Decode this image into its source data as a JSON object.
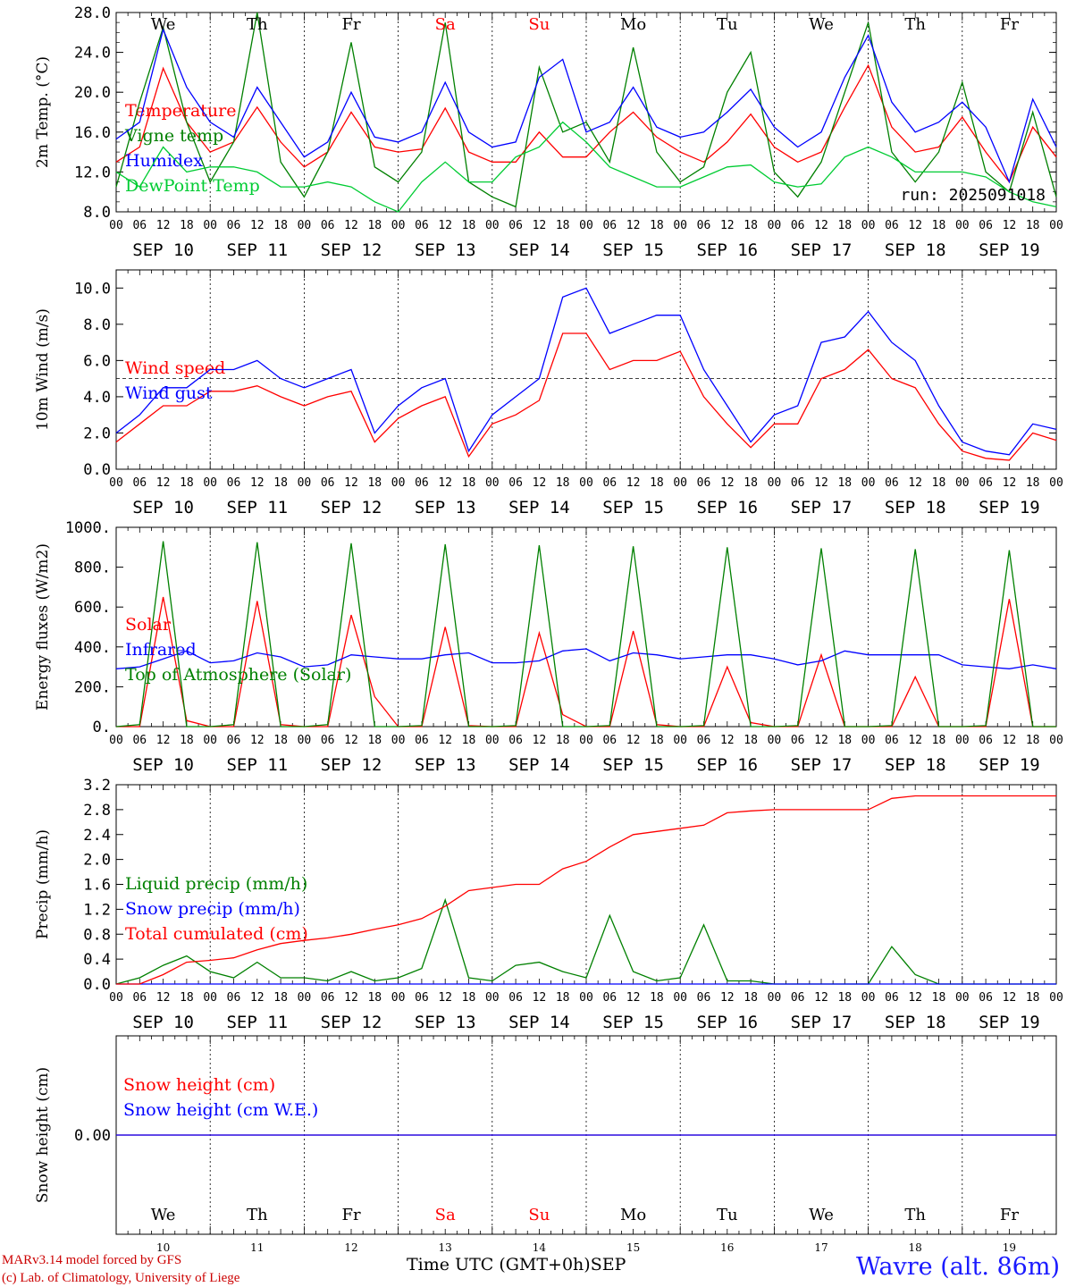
{
  "chart_data": [
    {
      "type": "line",
      "ylabel": "2m Temp. (°C)",
      "ylim": [
        8.0,
        28.0
      ],
      "yticks": [
        "8.0",
        "12.0",
        "16.0",
        "20.0",
        "24.0",
        "28.0"
      ],
      "weekdays": [
        "We",
        "Th",
        "Fr",
        "Sa",
        "Su",
        "Mo",
        "Tu",
        "We",
        "Th",
        "Fr"
      ],
      "weekday_colors": [
        "#000000",
        "#000000",
        "#000000",
        "#ff0000",
        "#ff0000",
        "#000000",
        "#000000",
        "#000000",
        "#000000",
        "#000000"
      ],
      "annotation": "run: 2025091018",
      "x_hours": [
        0,
        6,
        12,
        18,
        24,
        30,
        36,
        42,
        48,
        54,
        60,
        66,
        72,
        78,
        84,
        90,
        96,
        102,
        108,
        114,
        120,
        126,
        132,
        138,
        144,
        150,
        156,
        162,
        168,
        174,
        180,
        186,
        192,
        198,
        204,
        210,
        216,
        222,
        228,
        234,
        240
      ],
      "series": [
        {
          "name": "Temperature",
          "color": "#ff0000",
          "values": [
            13,
            14.5,
            22.4,
            17,
            14,
            15,
            18.5,
            15,
            12.5,
            14,
            18,
            14.5,
            14,
            14.3,
            18.4,
            14,
            13,
            13,
            16,
            13.5,
            13.5,
            16,
            18,
            15.5,
            14,
            13,
            15,
            17.8,
            14.5,
            13,
            14,
            18.5,
            22.7,
            16.5,
            14,
            14.5,
            17.5,
            14,
            11,
            16.5,
            13.5
          ]
        },
        {
          "name": "Vigne temp",
          "color": "#008000",
          "values": [
            10.5,
            19,
            26.5,
            17,
            11,
            15,
            28,
            13,
            9.5,
            14,
            25,
            12.5,
            11,
            14,
            27,
            11,
            9.5,
            8.5,
            22.5,
            16,
            17,
            13,
            24.5,
            14,
            11,
            12.5,
            20,
            24,
            12,
            9.5,
            13,
            20,
            27,
            14,
            11,
            14,
            21,
            12,
            10,
            18,
            9.5
          ]
        },
        {
          "name": "Humidex",
          "color": "#0000ff",
          "values": [
            15.3,
            17,
            26.3,
            20.5,
            17,
            15.5,
            20.5,
            17,
            13.5,
            15,
            20,
            15.5,
            15,
            16,
            21,
            16,
            14.5,
            15,
            21.5,
            23.3,
            16,
            17,
            20.5,
            16.5,
            15.5,
            16,
            18,
            20.3,
            16.5,
            14.5,
            16,
            21.5,
            25.7,
            19,
            16,
            17,
            19,
            16.5,
            11,
            19.3,
            14.5
          ]
        },
        {
          "name": "DewPoint Temp",
          "color": "#00cc33",
          "values": [
            12,
            10.5,
            14.5,
            12,
            12.5,
            12.5,
            12,
            10.5,
            10.5,
            11,
            10.5,
            9,
            8,
            11,
            13,
            11,
            11,
            13.5,
            14.5,
            17,
            15,
            12.5,
            11.5,
            10.5,
            10.5,
            11.5,
            12.5,
            12.7,
            11,
            10.5,
            10.8,
            13.5,
            14.5,
            13.5,
            12,
            12,
            12,
            11.5,
            10,
            9,
            8.5
          ]
        }
      ]
    },
    {
      "type": "line",
      "ylabel": "10m Wind (m/s)",
      "ylim": [
        0.0,
        11.0
      ],
      "yticks": [
        "0.0",
        "2.0",
        "4.0",
        "6.0",
        "8.0",
        "10.0"
      ],
      "reference_line": 5.0,
      "x_hours": [
        0,
        6,
        12,
        18,
        24,
        30,
        36,
        42,
        48,
        54,
        60,
        66,
        72,
        78,
        84,
        90,
        96,
        102,
        108,
        114,
        120,
        126,
        132,
        138,
        144,
        150,
        156,
        162,
        168,
        174,
        180,
        186,
        192,
        198,
        204,
        210,
        216,
        222,
        228,
        234,
        240
      ],
      "series": [
        {
          "name": "Wind speed",
          "color": "#ff0000",
          "values": [
            1.5,
            2.5,
            3.5,
            3.5,
            4.3,
            4.3,
            4.6,
            4,
            3.5,
            4,
            4.3,
            1.5,
            2.8,
            3.5,
            4,
            0.7,
            2.5,
            3,
            3.8,
            7.5,
            7.5,
            5.5,
            6,
            6,
            6.5,
            4,
            2.5,
            1.2,
            2.5,
            2.5,
            5,
            5.5,
            6.6,
            5,
            4.5,
            2.5,
            1,
            0.6,
            0.5,
            2,
            1.6
          ]
        },
        {
          "name": "Wind gust",
          "color": "#0000ff",
          "values": [
            2,
            3,
            4.5,
            4.5,
            5.5,
            5.5,
            6,
            5,
            4.5,
            5,
            5.5,
            2,
            3.5,
            4.5,
            5,
            1,
            3,
            4,
            5,
            9.5,
            10,
            7.5,
            8,
            8.5,
            8.5,
            5.5,
            3.5,
            1.5,
            3,
            3.5,
            7,
            7.3,
            8.7,
            7,
            6,
            3.5,
            1.5,
            1,
            0.8,
            2.5,
            2.2
          ]
        }
      ]
    },
    {
      "type": "line",
      "ylabel": "Energy fluxes (W/m2)",
      "ylim": [
        0,
        1000
      ],
      "yticks": [
        "0.",
        "200.",
        "400.",
        "600.",
        "800.",
        "1000."
      ],
      "x_hours": [
        0,
        6,
        12,
        18,
        24,
        30,
        36,
        42,
        48,
        54,
        60,
        66,
        72,
        78,
        84,
        90,
        96,
        102,
        108,
        114,
        120,
        126,
        132,
        138,
        144,
        150,
        156,
        162,
        168,
        174,
        180,
        186,
        192,
        198,
        204,
        210,
        216,
        222,
        228,
        234,
        240
      ],
      "series": [
        {
          "name": "Solar",
          "color": "#ff0000",
          "values": [
            0,
            0,
            650,
            30,
            0,
            0,
            630,
            10,
            0,
            0,
            560,
            150,
            0,
            0,
            500,
            5,
            0,
            0,
            470,
            60,
            0,
            0,
            480,
            10,
            0,
            0,
            300,
            20,
            0,
            0,
            360,
            0,
            0,
            0,
            250,
            0,
            0,
            0,
            640,
            0,
            0
          ]
        },
        {
          "name": "Infrared",
          "color": "#0000ff",
          "values": [
            290,
            300,
            340,
            380,
            320,
            330,
            370,
            350,
            300,
            310,
            360,
            350,
            340,
            340,
            360,
            370,
            320,
            320,
            330,
            380,
            390,
            330,
            370,
            360,
            340,
            350,
            360,
            360,
            340,
            310,
            330,
            380,
            360,
            360,
            360,
            360,
            310,
            300,
            290,
            310,
            290
          ]
        },
        {
          "name": "Top of Atmosphere (Solar)",
          "color": "#008000",
          "values": [
            0,
            10,
            930,
            0,
            0,
            10,
            925,
            0,
            0,
            10,
            920,
            0,
            0,
            5,
            915,
            0,
            0,
            5,
            910,
            0,
            0,
            5,
            905,
            0,
            0,
            5,
            900,
            0,
            0,
            5,
            895,
            0,
            0,
            5,
            890,
            0,
            0,
            5,
            885,
            0,
            0
          ]
        }
      ]
    },
    {
      "type": "line",
      "ylabel": "Precip (mm/h)",
      "ylim": [
        0.0,
        3.2
      ],
      "yticks": [
        "0.0",
        "0.4",
        "0.8",
        "1.2",
        "1.6",
        "2.0",
        "2.4",
        "2.8",
        "3.2"
      ],
      "x_hours": [
        0,
        6,
        12,
        18,
        24,
        30,
        36,
        42,
        48,
        54,
        60,
        66,
        72,
        78,
        84,
        90,
        96,
        102,
        108,
        114,
        120,
        126,
        132,
        138,
        144,
        150,
        156,
        162,
        168,
        174,
        180,
        186,
        192,
        198,
        204,
        210,
        216,
        222,
        228,
        234,
        240
      ],
      "series": [
        {
          "name": "Liquid precip (mm/h)",
          "color": "#008000",
          "values": [
            0,
            0.1,
            0.3,
            0.45,
            0.2,
            0.1,
            0.35,
            0.1,
            0.1,
            0.05,
            0.2,
            0.05,
            0.1,
            0.25,
            1.35,
            0.1,
            0.05,
            0.3,
            0.35,
            0.2,
            0.1,
            1.1,
            0.2,
            0.05,
            0.1,
            0.95,
            0.05,
            0.05,
            0,
            0,
            0,
            0,
            0,
            0.6,
            0.15,
            0,
            0,
            0,
            0,
            0,
            0
          ]
        },
        {
          "name": "Snow precip (mm/h)",
          "color": "#0000ff",
          "values": [
            0,
            0,
            0,
            0,
            0,
            0,
            0,
            0,
            0,
            0,
            0,
            0,
            0,
            0,
            0,
            0,
            0,
            0,
            0,
            0,
            0,
            0,
            0,
            0,
            0,
            0,
            0,
            0,
            0,
            0,
            0,
            0,
            0,
            0,
            0,
            0,
            0,
            0,
            0,
            0,
            0
          ]
        },
        {
          "name": "Total cumulated (cm)",
          "color": "#ff0000",
          "values": [
            0,
            0,
            0.15,
            0.35,
            0.38,
            0.42,
            0.55,
            0.65,
            0.7,
            0.74,
            0.8,
            0.88,
            0.95,
            1.05,
            1.25,
            1.5,
            1.55,
            1.6,
            1.6,
            1.85,
            1.97,
            2.2,
            2.4,
            2.45,
            2.5,
            2.55,
            2.75,
            2.78,
            2.8,
            2.8,
            2.8,
            2.8,
            2.8,
            2.98,
            3.02,
            3.02,
            3.02,
            3.02,
            3.02,
            3.02,
            3.02
          ]
        }
      ]
    },
    {
      "type": "line",
      "ylabel": "Snow height (cm)",
      "yticks": [
        "0.00"
      ],
      "series": [
        {
          "name": "Snow height (cm)",
          "color": "#ff0000",
          "values": [
            0,
            0
          ]
        },
        {
          "name": "Snow height (cm W.E.)",
          "color": "#0000ff",
          "values": [
            0,
            0
          ]
        }
      ],
      "weekdays": [
        "We",
        "Th",
        "Fr",
        "Sa",
        "Su",
        "Mo",
        "Tu",
        "We",
        "Th",
        "Fr"
      ],
      "day_numbers": [
        "10",
        "11",
        "12",
        "13",
        "14",
        "15",
        "16",
        "17",
        "18",
        "19"
      ]
    }
  ],
  "x_axis": {
    "hour_ticks": [
      "00",
      "06",
      "12",
      "18"
    ],
    "dates": [
      "SEP 10",
      "SEP 11",
      "SEP 12",
      "SEP 13",
      "SEP 14",
      "SEP 15",
      "SEP 16",
      "SEP 17",
      "SEP 18",
      "SEP 19"
    ],
    "final_tick": "00",
    "xlabel": "Time UTC (GMT+0h)",
    "month": "SEP"
  },
  "footer": {
    "credit_line1": "MARv3.14 model forced by GFS",
    "credit_line2": "(c) Lab. of Climatology, University of Liege",
    "station": "Wavre (alt. 86m)"
  }
}
